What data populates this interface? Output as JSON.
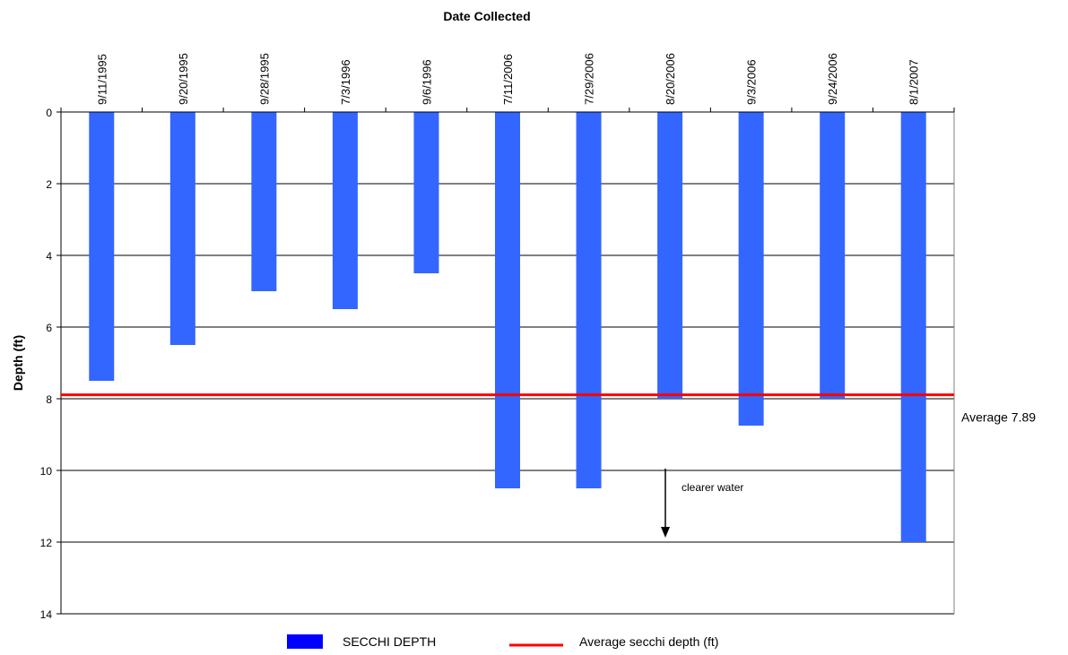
{
  "chart_data": {
    "type": "bar",
    "title": "Date Collected",
    "xlabel": "Date Collected",
    "ylabel": "Depth (ft)",
    "categories": [
      "9/11/1995",
      "9/20/1995",
      "9/28/1995",
      "7/3/1996",
      "9/6/1996",
      "7/11/2006",
      "7/29/2006",
      "8/20/2006",
      "9/3/2006",
      "9/24/2006",
      "8/1/2007"
    ],
    "series": [
      {
        "name": "SECCHI DEPTH",
        "color": "#3366ff",
        "values": [
          7.5,
          6.5,
          5.0,
          5.5,
          4.5,
          10.5,
          10.5,
          8.0,
          8.75,
          8.0,
          12.0
        ]
      }
    ],
    "average": {
      "name": "Average secchi depth (ft)",
      "value": 7.89,
      "label": "Average 7.89",
      "color": "#ff0000"
    },
    "yaxis": {
      "range": [
        0,
        14
      ],
      "inverted": true,
      "ticks": [
        0,
        2,
        4,
        6,
        8,
        10,
        12,
        14
      ],
      "grid": true
    },
    "x_axis_position": "top",
    "annotation": {
      "text": "clearer water",
      "arrow": "down"
    },
    "legend": {
      "position": "bottom",
      "entries": [
        {
          "label": "SECCHI DEPTH",
          "kind": "box",
          "color": "#0000ff"
        },
        {
          "label": "Average secchi depth (ft)",
          "kind": "line",
          "color": "#ff0000"
        }
      ]
    }
  }
}
